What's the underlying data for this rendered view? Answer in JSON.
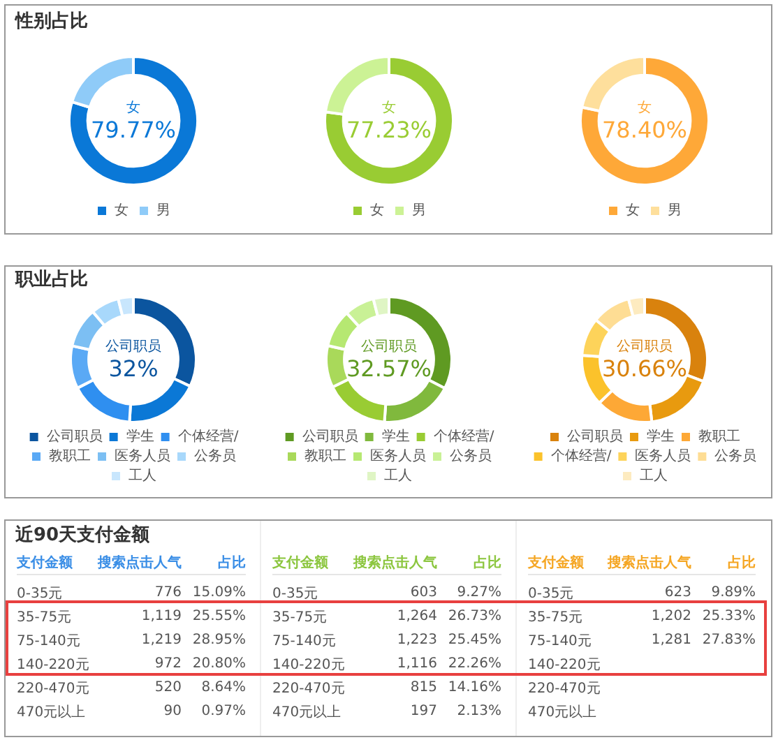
{
  "chart_data": [
    {
      "type": "donut",
      "title": "性别占比",
      "categories": [
        "女",
        "男"
      ],
      "values": [
        79.77,
        20.23
      ],
      "colors": [
        "#0a78d7",
        "#8fcbf8"
      ],
      "value_labels": [
        "79.77%",
        null
      ],
      "legend": "bottom"
    },
    {
      "type": "donut",
      "categories": [
        "女",
        "男"
      ],
      "values": [
        77.23,
        22.77
      ],
      "colors": [
        "#99cc33",
        "#ccf295"
      ],
      "value_labels": [
        "77.23%",
        null
      ],
      "legend": "bottom"
    },
    {
      "type": "donut",
      "categories": [
        "女",
        "男"
      ],
      "values": [
        78.4,
        21.6
      ],
      "colors": [
        "#fea838",
        "#fedf9c"
      ],
      "value_labels": [
        "78.40%",
        null
      ],
      "legend": "bottom"
    },
    {
      "type": "donut",
      "title": "职业占比",
      "categories": [
        "公司职员",
        "学生",
        "个体经营/",
        "教职工",
        "医务人员",
        "公务员",
        "工人"
      ],
      "values": [
        32,
        19,
        16.5,
        11,
        10.3,
        7.3,
        3.9
      ],
      "colors": [
        "#0b559f",
        "#0b78d6",
        "#2f8ff0",
        "#5aa9f5",
        "#7cbff3",
        "#a8d8fb",
        "#c8e6fd"
      ],
      "value_labels": [
        "32%",
        null,
        null,
        null,
        null,
        null,
        null
      ],
      "legend": "bottom"
    },
    {
      "type": "donut",
      "categories": [
        "公司职员",
        "学生",
        "个体经营/",
        "教职工",
        "医务人员",
        "公务员",
        "工人"
      ],
      "values": [
        32.57,
        18.6,
        16.6,
        10.8,
        9.7,
        7.7,
        4.03
      ],
      "colors": [
        "#5f9a22",
        "#80b93d",
        "#99cc33",
        "#a9d95a",
        "#b6e872",
        "#c9f196",
        "#dff5c4"
      ],
      "value_labels": [
        "32.57%",
        null,
        null,
        null,
        null,
        null,
        null
      ],
      "legend": "bottom"
    },
    {
      "type": "donut",
      "categories": [
        "公司职员",
        "学生",
        "教职工",
        "个体经营/",
        "医务人员",
        "公务员",
        "工人"
      ],
      "values": [
        30.66,
        17.5,
        14.7,
        13.2,
        9.8,
        10.0,
        4.14
      ],
      "colors": [
        "#d9820d",
        "#e89a0f",
        "#fda836",
        "#fbc22b",
        "#fdd35a",
        "#fedd94",
        "#fdebc0"
      ],
      "value_labels": [
        "30.66%",
        null,
        null,
        null,
        null,
        null,
        null
      ],
      "legend": "bottom"
    },
    {
      "type": "other",
      "title": "近90天支付金额",
      "xlabel": "支付金额",
      "color": "#3a8ee6",
      "categories": [
        "0-35元",
        "35-75元",
        "75-140元",
        "140-220元",
        "220-470元",
        "470元以上"
      ],
      "series": [
        {
          "name": "搜索点击人气",
          "values": [
            776,
            1119,
            1219,
            972,
            520,
            90
          ],
          "value_labels": [
            "776",
            "1,119",
            "1,219",
            "972",
            "520",
            "90"
          ]
        },
        {
          "name": "占比",
          "values": [
            15.09,
            25.55,
            28.95,
            20.8,
            8.64,
            0.97
          ],
          "value_labels": [
            "15.09%",
            "25.55%",
            "28.95%",
            "20.80%",
            "8.64%",
            "0.97%"
          ]
        }
      ]
    },
    {
      "type": "other",
      "xlabel": "支付金额",
      "color": "#8cc63f",
      "categories": [
        "0-35元",
        "35-75元",
        "75-140元",
        "140-220元",
        "220-470元",
        "470元以上"
      ],
      "series": [
        {
          "name": "搜索点击人气",
          "values": [
            603,
            1264,
            1223,
            1116,
            815,
            197
          ],
          "value_labels": [
            "603",
            "1,264",
            "1,223",
            "1,116",
            "815",
            "197"
          ]
        },
        {
          "name": "占比",
          "values": [
            9.27,
            26.73,
            25.45,
            22.26,
            14.16,
            2.13
          ],
          "value_labels": [
            "9.27%",
            "26.73%",
            "25.45%",
            "22.26%",
            "14.16%",
            "2.13%"
          ]
        }
      ]
    },
    {
      "type": "other",
      "xlabel": "支付金额",
      "color": "#f5a623",
      "categories": [
        "0-35元",
        "35-75元",
        "75-140元",
        "140-220元",
        "220-470元",
        "470元以上"
      ],
      "series": [
        {
          "name": "搜索点击人气",
          "values": [
            623,
            1202,
            1281,
            null,
            null,
            null
          ],
          "value_labels": [
            "623",
            "1,202",
            "1,281",
            null,
            null,
            null
          ]
        },
        {
          "name": "占比",
          "values": [
            9.89,
            25.33,
            27.83,
            null,
            null,
            null
          ],
          "value_labels": [
            "9.89%",
            "25.33%",
            "27.83%",
            null,
            null,
            null
          ]
        }
      ]
    }
  ]
}
